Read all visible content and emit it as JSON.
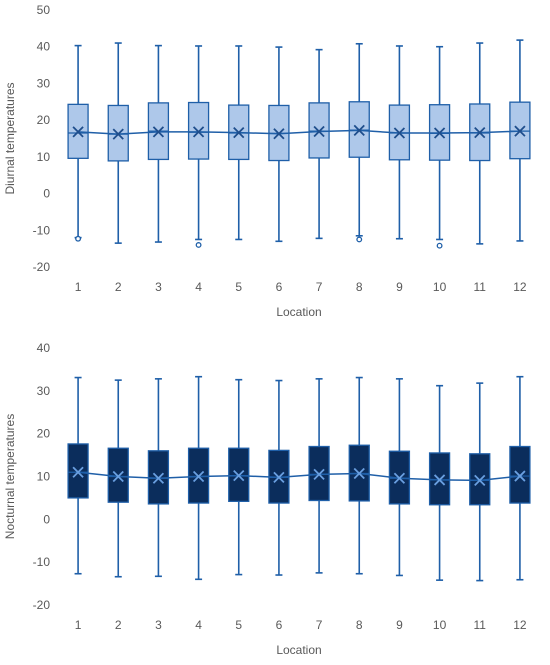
{
  "chart_data": [
    {
      "type": "boxplot",
      "ylabel": "Diurnal temperatures",
      "xlabel": "Location",
      "ylim": [
        -20,
        50
      ],
      "yticks": [
        -20,
        -10,
        0,
        10,
        20,
        30,
        40,
        50
      ],
      "grid": false,
      "box_fill": "#aec8ea",
      "line_color": "#1f5fa8",
      "categories": [
        "1",
        "2",
        "3",
        "4",
        "5",
        "6",
        "7",
        "8",
        "9",
        "10",
        "11",
        "12"
      ],
      "boxes": [
        {
          "min": -12.0,
          "q1": 9.6,
          "median": 16.5,
          "mean": 16.8,
          "q3": 24.3,
          "max": 40.3,
          "outliers": [
            -12.3
          ]
        },
        {
          "min": -13.5,
          "q1": 8.9,
          "median": 16.2,
          "mean": 16.2,
          "q3": 24.0,
          "max": 41.0,
          "outliers": []
        },
        {
          "min": -13.2,
          "q1": 9.3,
          "median": 17.0,
          "mean": 16.8,
          "q3": 24.7,
          "max": 40.3,
          "outliers": []
        },
        {
          "min": -12.5,
          "q1": 9.4,
          "median": 16.7,
          "mean": 16.8,
          "q3": 24.8,
          "max": 40.2,
          "outliers": [
            -14.0
          ]
        },
        {
          "min": -12.5,
          "q1": 9.3,
          "median": 16.5,
          "mean": 16.6,
          "q3": 24.1,
          "max": 40.2,
          "outliers": []
        },
        {
          "min": -13.0,
          "q1": 9.0,
          "median": 16.4,
          "mean": 16.3,
          "q3": 24.0,
          "max": 39.9,
          "outliers": []
        },
        {
          "min": -12.2,
          "q1": 9.7,
          "median": 17.0,
          "mean": 16.9,
          "q3": 24.7,
          "max": 39.2,
          "outliers": []
        },
        {
          "min": -11.5,
          "q1": 9.9,
          "median": 17.3,
          "mean": 17.2,
          "q3": 25.0,
          "max": 40.8,
          "outliers": [
            -12.5
          ]
        },
        {
          "min": -12.3,
          "q1": 9.2,
          "median": 16.5,
          "mean": 16.5,
          "q3": 24.1,
          "max": 40.2,
          "outliers": []
        },
        {
          "min": -12.5,
          "q1": 9.1,
          "median": 16.4,
          "mean": 16.5,
          "q3": 24.2,
          "max": 40.0,
          "outliers": [
            -14.2
          ]
        },
        {
          "min": -13.7,
          "q1": 9.0,
          "median": 16.5,
          "mean": 16.6,
          "q3": 24.4,
          "max": 41.0,
          "outliers": []
        },
        {
          "min": -12.9,
          "q1": 9.5,
          "median": 17.0,
          "mean": 17.0,
          "q3": 24.9,
          "max": 41.8,
          "outliers": []
        }
      ]
    },
    {
      "type": "boxplot",
      "ylabel": "Nocturnal temperatures",
      "xlabel": "Location",
      "ylim": [
        -20,
        40
      ],
      "yticks": [
        -20,
        -10,
        0,
        10,
        20,
        30,
        40
      ],
      "grid": false,
      "box_fill": "#0b2d5c",
      "line_color": "#1f5fa8",
      "categories": [
        "1",
        "2",
        "3",
        "4",
        "5",
        "6",
        "7",
        "8",
        "9",
        "10",
        "11",
        "12"
      ],
      "boxes": [
        {
          "min": -12.7,
          "q1": 5.0,
          "median": 11.0,
          "mean": 11.0,
          "q3": 17.6,
          "max": 33.1,
          "outliers": []
        },
        {
          "min": -13.4,
          "q1": 4.0,
          "median": 10.0,
          "mean": 10.0,
          "q3": 16.6,
          "max": 32.5,
          "outliers": []
        },
        {
          "min": -13.3,
          "q1": 3.6,
          "median": 9.6,
          "mean": 9.6,
          "q3": 16.0,
          "max": 32.8,
          "outliers": []
        },
        {
          "min": -14.0,
          "q1": 3.8,
          "median": 10.0,
          "mean": 10.0,
          "q3": 16.6,
          "max": 33.3,
          "outliers": []
        },
        {
          "min": -12.9,
          "q1": 4.2,
          "median": 10.2,
          "mean": 10.2,
          "q3": 16.6,
          "max": 32.6,
          "outliers": []
        },
        {
          "min": -13.0,
          "q1": 3.8,
          "median": 9.8,
          "mean": 9.8,
          "q3": 16.1,
          "max": 32.4,
          "outliers": []
        },
        {
          "min": -12.5,
          "q1": 4.4,
          "median": 10.5,
          "mean": 10.5,
          "q3": 17.0,
          "max": 32.8,
          "outliers": []
        },
        {
          "min": -12.7,
          "q1": 4.3,
          "median": 10.7,
          "mean": 10.7,
          "q3": 17.3,
          "max": 33.1,
          "outliers": []
        },
        {
          "min": -13.1,
          "q1": 3.6,
          "median": 9.6,
          "mean": 9.6,
          "q3": 15.9,
          "max": 32.8,
          "outliers": []
        },
        {
          "min": -14.2,
          "q1": 3.4,
          "median": 9.2,
          "mean": 9.2,
          "q3": 15.5,
          "max": 31.2,
          "outliers": []
        },
        {
          "min": -14.3,
          "q1": 3.4,
          "median": 9.1,
          "mean": 9.1,
          "q3": 15.3,
          "max": 31.8,
          "outliers": []
        },
        {
          "min": -14.1,
          "q1": 3.8,
          "median": 10.1,
          "mean": 10.1,
          "q3": 17.0,
          "max": 33.3,
          "outliers": []
        }
      ]
    }
  ]
}
